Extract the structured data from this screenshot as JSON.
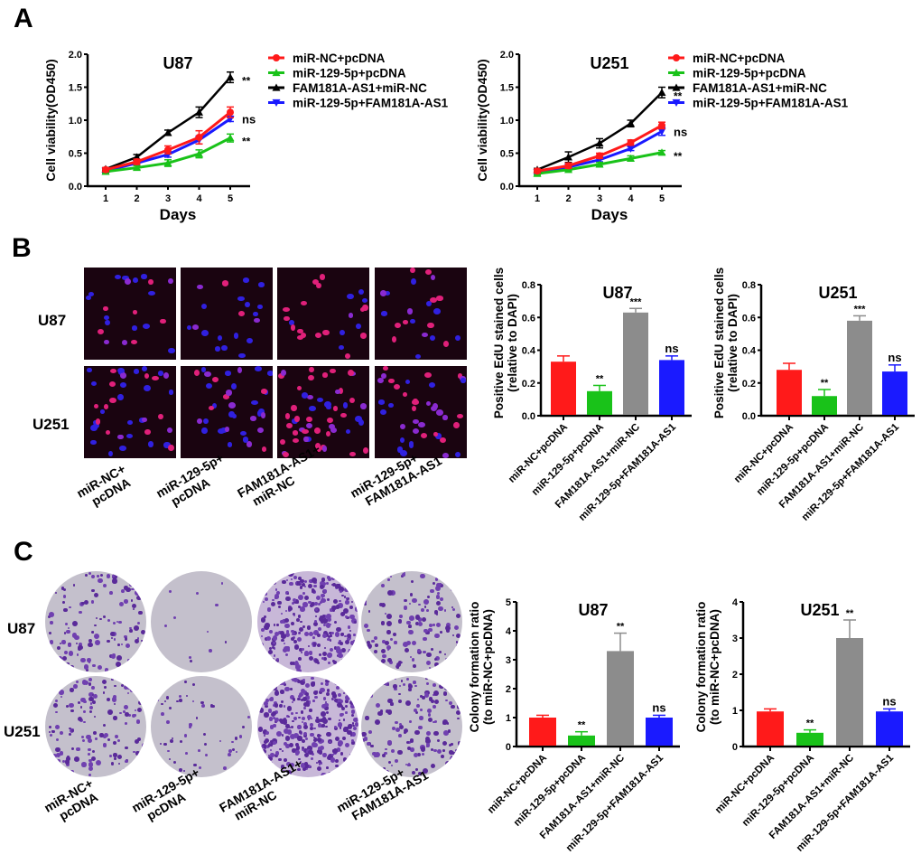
{
  "panels": {
    "A": "A",
    "B": "B",
    "C": "C"
  },
  "colors": {
    "red": "#ff1a1a",
    "green": "#19c219",
    "black": "#000000",
    "blue": "#1a1aff",
    "gray": "#8c8c8c"
  },
  "groups": [
    "miR-NC+pcDNA",
    "miR-129-5p+pcDNA",
    "FAM181A-AS1+miR-NC",
    "miR-129-5p+FAM181A-AS1"
  ],
  "image_labels": [
    [
      "miR-NC+",
      "pcDNA"
    ],
    [
      "miR-129-5p+",
      "pcDNA"
    ],
    [
      "FAM181A-AS1+",
      "miR-NC"
    ],
    [
      "miR-129-5p+",
      "FAM181A-AS1"
    ]
  ],
  "row_labels": [
    "U87",
    "U251"
  ],
  "chart_data": [
    {
      "id": "A-U87",
      "type": "line",
      "title": "U87",
      "xlabel": "Days",
      "ylabel": "Cell viability(OD450)",
      "x": [
        1,
        2,
        3,
        4,
        5
      ],
      "ylim": [
        0,
        2.0
      ],
      "yticks": [
        "0.0",
        "0.5",
        "1.0",
        "1.5",
        "2.0"
      ],
      "legend": "right",
      "series": [
        {
          "name": "miR-NC+pcDNA",
          "color": "#ff1a1a",
          "marker": "circle",
          "values": [
            0.25,
            0.37,
            0.55,
            0.74,
            1.12
          ],
          "errors": [
            0.03,
            0.04,
            0.06,
            0.1,
            0.08
          ]
        },
        {
          "name": "miR-129-5p+pcDNA",
          "color": "#19c219",
          "marker": "triangle-up",
          "values": [
            0.22,
            0.28,
            0.35,
            0.49,
            0.73
          ],
          "errors": [
            0.03,
            0.03,
            0.05,
            0.06,
            0.06
          ]
        },
        {
          "name": "FAM181A-AS1+miR-NC",
          "color": "#000000",
          "marker": "triangle-up",
          "values": [
            0.26,
            0.44,
            0.81,
            1.12,
            1.65
          ],
          "errors": [
            0.02,
            0.04,
            0.04,
            0.08,
            0.08
          ]
        },
        {
          "name": "miR-129-5p+FAM181A-AS1",
          "color": "#1a1aff",
          "marker": "triangle-down",
          "values": [
            0.23,
            0.35,
            0.48,
            0.7,
            1.02
          ],
          "errors": [
            0.02,
            0.03,
            0.04,
            0.06,
            0.04
          ]
        }
      ],
      "annotations": [
        {
          "series": "FAM181A-AS1+miR-NC",
          "text": "**"
        },
        {
          "series": "miR-129-5p+FAM181A-AS1",
          "text": "ns"
        },
        {
          "series": "miR-129-5p+pcDNA",
          "text": "**"
        }
      ]
    },
    {
      "id": "A-U251",
      "type": "line",
      "title": "U251",
      "xlabel": "Days",
      "ylabel": "Cell viability(OD450)",
      "x": [
        1,
        2,
        3,
        4,
        5
      ],
      "ylim": [
        0,
        2.0
      ],
      "yticks": [
        "0.0",
        "0.5",
        "1.0",
        "1.5",
        "2.0"
      ],
      "legend": "right",
      "series": [
        {
          "name": "miR-NC+pcDNA",
          "color": "#ff1a1a",
          "marker": "circle",
          "values": [
            0.23,
            0.31,
            0.46,
            0.66,
            0.92
          ],
          "errors": [
            0.03,
            0.04,
            0.04,
            0.04,
            0.05
          ]
        },
        {
          "name": "miR-129-5p+pcDNA",
          "color": "#19c219",
          "marker": "triangle-up",
          "values": [
            0.19,
            0.25,
            0.33,
            0.42,
            0.51
          ],
          "errors": [
            0.02,
            0.02,
            0.03,
            0.04,
            0.03
          ]
        },
        {
          "name": "FAM181A-AS1+miR-NC",
          "color": "#000000",
          "marker": "triangle-up",
          "values": [
            0.25,
            0.44,
            0.65,
            0.95,
            1.42
          ],
          "errors": [
            0.02,
            0.08,
            0.07,
            0.05,
            0.08
          ]
        },
        {
          "name": "miR-129-5p+FAM181A-AS1",
          "color": "#1a1aff",
          "marker": "triangle-down",
          "values": [
            0.21,
            0.29,
            0.4,
            0.57,
            0.83
          ],
          "errors": [
            0.02,
            0.02,
            0.03,
            0.03,
            0.06
          ]
        }
      ],
      "annotations": [
        {
          "series": "FAM181A-AS1+miR-NC",
          "text": "**"
        },
        {
          "series": "miR-129-5p+FAM181A-AS1",
          "text": "ns"
        },
        {
          "series": "miR-129-5p+pcDNA",
          "text": "**"
        }
      ]
    },
    {
      "id": "B-U87",
      "type": "bar",
      "title": "U87",
      "ylabel": "Positive EdU stained cells",
      "ylabel2": "(relative to DAPI)",
      "categories": [
        "miR-NC+pcDNA",
        "miR-129-5p+pcDNA",
        "FAM181A-AS1+miR-NC",
        "miR-129-5p+FAM181A-AS1"
      ],
      "values": [
        0.33,
        0.15,
        0.63,
        0.34
      ],
      "errors": [
        0.035,
        0.035,
        0.025,
        0.025
      ],
      "significance": [
        "",
        "**",
        "***",
        "ns"
      ],
      "colors": [
        "#ff1a1a",
        "#19c219",
        "#8c8c8c",
        "#1a1aff"
      ],
      "ylim": [
        0,
        0.8
      ],
      "yticks": [
        "0.0",
        "0.2",
        "0.4",
        "0.6",
        "0.8"
      ]
    },
    {
      "id": "B-U251",
      "type": "bar",
      "title": "U251",
      "ylabel": "Positive EdU stained cells",
      "ylabel2": "(relative to DAPI)",
      "categories": [
        "miR-NC+pcDNA",
        "miR-129-5p+pcDNA",
        "FAM181A-AS1+miR-NC",
        "miR-129-5p+FAM181A-AS1"
      ],
      "values": [
        0.28,
        0.12,
        0.58,
        0.27
      ],
      "errors": [
        0.04,
        0.04,
        0.03,
        0.04
      ],
      "significance": [
        "",
        "**",
        "***",
        "ns"
      ],
      "colors": [
        "#ff1a1a",
        "#19c219",
        "#8c8c8c",
        "#1a1aff"
      ],
      "ylim": [
        0,
        0.8
      ],
      "yticks": [
        "0.0",
        "0.2",
        "0.4",
        "0.6",
        "0.8"
      ]
    },
    {
      "id": "C-U87",
      "type": "bar",
      "title": "U87",
      "ylabel": "Colony formation ratio",
      "ylabel2": "(to miR-NC+pcDNA)",
      "categories": [
        "miR-NC+pcDNA",
        "miR-129-5p+pcDNA",
        "FAM181A-AS1+miR-NC",
        "miR-129-5p+FAM181A-AS1"
      ],
      "values": [
        1.0,
        0.38,
        3.3,
        1.0
      ],
      "errors": [
        0.08,
        0.13,
        0.62,
        0.08
      ],
      "significance": [
        "",
        "**",
        "**",
        "ns"
      ],
      "colors": [
        "#ff1a1a",
        "#19c219",
        "#8c8c8c",
        "#1a1aff"
      ],
      "ylim": [
        0,
        5
      ],
      "yticks": [
        "0",
        "1",
        "2",
        "3",
        "4",
        "5"
      ]
    },
    {
      "id": "C-U251",
      "type": "bar",
      "title": "U251",
      "ylabel": "Colony formation ratio",
      "ylabel2": "(to miR-NC+pcDNA)",
      "categories": [
        "miR-NC+pcDNA",
        "miR-129-5p+pcDNA",
        "FAM181A-AS1+miR-NC",
        "miR-129-5p+FAM181A-AS1"
      ],
      "values": [
        0.97,
        0.38,
        3.0,
        0.97
      ],
      "errors": [
        0.07,
        0.08,
        0.5,
        0.07
      ],
      "significance": [
        "",
        "**",
        "**",
        "ns"
      ],
      "colors": [
        "#ff1a1a",
        "#19c219",
        "#8c8c8c",
        "#1a1aff"
      ],
      "ylim": [
        0,
        4
      ],
      "yticks": [
        "0",
        "1",
        "2",
        "3",
        "4"
      ]
    }
  ]
}
